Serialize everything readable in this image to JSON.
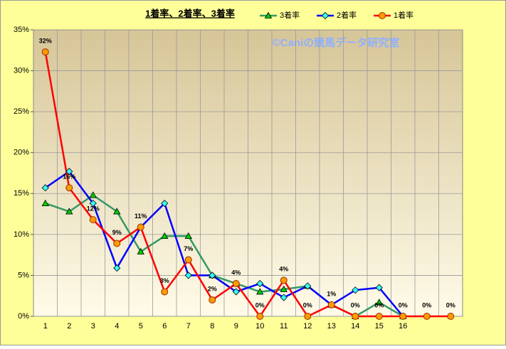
{
  "chart_data": {
    "type": "line",
    "title": "1着率、2着率、3着率",
    "watermark": "©Caniの競馬データ研究室",
    "categories": [
      "1",
      "2",
      "3",
      "4",
      "5",
      "6",
      "7",
      "8",
      "9",
      "10",
      "11",
      "12",
      "13",
      "14",
      "15",
      "16",
      null,
      null
    ],
    "ylim": [
      0,
      35
    ],
    "yticks": [
      {
        "value": 0,
        "label": "0%"
      },
      {
        "value": 5,
        "label": "5%"
      },
      {
        "value": 10,
        "label": "10%"
      },
      {
        "value": 15,
        "label": "15%"
      },
      {
        "value": 20,
        "label": "20%"
      },
      {
        "value": 25,
        "label": "25%"
      },
      {
        "value": 30,
        "label": "30%"
      },
      {
        "value": 35,
        "label": "35%"
      }
    ],
    "grid": true,
    "legend": "top",
    "series": [
      {
        "name": "3着率",
        "color": "#339966",
        "marker": "triangle",
        "marker_color": "#00cc00",
        "values": [
          13.8,
          12.8,
          14.8,
          12.8,
          7.9,
          9.8,
          9.8,
          5.0,
          4.0,
          3.0,
          3.3,
          3.7,
          1.4,
          0,
          1.7,
          0,
          null,
          null
        ]
      },
      {
        "name": "2着率",
        "color": "#0000ff",
        "marker": "diamond",
        "marker_color": "#33ffff",
        "values": [
          15.7,
          17.7,
          13.8,
          5.9,
          10.9,
          13.8,
          5.0,
          5.0,
          3.0,
          4.0,
          2.3,
          3.7,
          1.4,
          3.2,
          3.5,
          0,
          null,
          null
        ]
      },
      {
        "name": "1着率",
        "color": "#ff0000",
        "marker": "circle",
        "marker_color": "#ff9900",
        "values": [
          32.3,
          15.7,
          11.8,
          8.9,
          10.9,
          3.0,
          6.9,
          2.0,
          4.0,
          0,
          4.4,
          0,
          1.4,
          0,
          0,
          0,
          0,
          0
        ],
        "value_labels": [
          "32%",
          "16%",
          "12%",
          "9%",
          "11%",
          "3%",
          "7%",
          "2%",
          "4%",
          "0%",
          "4%",
          "0%",
          "1%",
          "0%",
          "0%",
          "0%",
          "0%",
          "0%"
        ]
      }
    ]
  }
}
